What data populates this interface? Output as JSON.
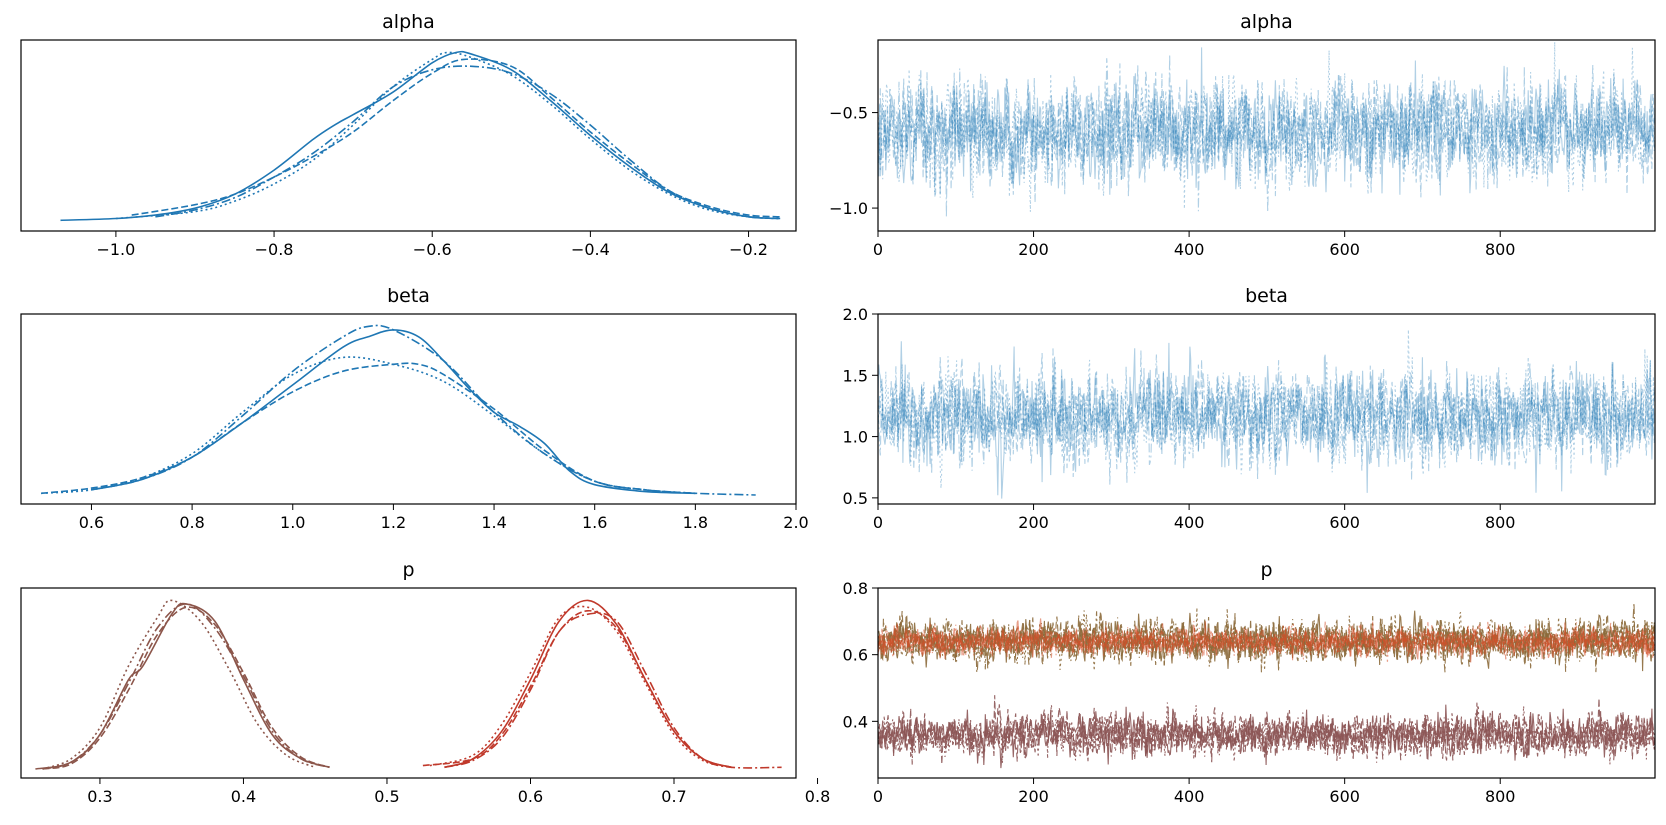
{
  "chart_data": [
    {
      "type": "line",
      "kind": "density",
      "title": "alpha",
      "xlim": [
        -1.12,
        -0.14
      ],
      "xticks": [
        -1.0,
        -0.8,
        -0.6,
        -0.4,
        -0.2
      ],
      "xtick_labels": [
        "−1.0",
        "−0.8",
        "−0.6",
        "−0.4",
        "−0.2"
      ],
      "yticks": [],
      "line_color": "#1f77b4",
      "series": [
        {
          "style": "solid",
          "x": [
            -1.07,
            -1.0,
            -0.95,
            -0.9,
            -0.85,
            -0.8,
            -0.75,
            -0.72,
            -0.7,
            -0.65,
            -0.6,
            -0.57,
            -0.55,
            -0.5,
            -0.45,
            -0.4,
            -0.35,
            -0.3,
            -0.25,
            -0.2,
            -0.16
          ],
          "y": [
            0.01,
            0.02,
            0.04,
            0.08,
            0.16,
            0.3,
            0.48,
            0.57,
            0.62,
            0.75,
            0.92,
            0.98,
            0.97,
            0.88,
            0.7,
            0.5,
            0.32,
            0.17,
            0.08,
            0.03,
            0.02
          ]
        },
        {
          "style": "dotted",
          "x": [
            -1.0,
            -0.9,
            -0.85,
            -0.8,
            -0.75,
            -0.7,
            -0.65,
            -0.6,
            -0.58,
            -0.55,
            -0.5,
            -0.45,
            -0.4,
            -0.35,
            -0.3,
            -0.25,
            -0.2,
            -0.16
          ],
          "y": [
            0.02,
            0.06,
            0.12,
            0.22,
            0.36,
            0.56,
            0.78,
            0.94,
            0.98,
            0.95,
            0.85,
            0.68,
            0.48,
            0.3,
            0.16,
            0.07,
            0.03,
            0.02
          ]
        },
        {
          "style": "dashed",
          "x": [
            -0.98,
            -0.9,
            -0.85,
            -0.8,
            -0.75,
            -0.7,
            -0.65,
            -0.6,
            -0.56,
            -0.5,
            -0.45,
            -0.4,
            -0.35,
            -0.3,
            -0.25,
            -0.2,
            -0.16
          ],
          "y": [
            0.04,
            0.1,
            0.16,
            0.26,
            0.38,
            0.52,
            0.7,
            0.86,
            0.94,
            0.9,
            0.72,
            0.52,
            0.34,
            0.18,
            0.09,
            0.04,
            0.03
          ]
        },
        {
          "style": "dashdot",
          "x": [
            -0.95,
            -0.9,
            -0.85,
            -0.8,
            -0.75,
            -0.7,
            -0.65,
            -0.6,
            -0.55,
            -0.5,
            -0.45,
            -0.4,
            -0.35,
            -0.3,
            -0.25,
            -0.2,
            -0.16
          ],
          "y": [
            0.03,
            0.07,
            0.14,
            0.26,
            0.4,
            0.58,
            0.78,
            0.88,
            0.9,
            0.86,
            0.74,
            0.56,
            0.36,
            0.18,
            0.08,
            0.03,
            0.02
          ]
        }
      ]
    },
    {
      "type": "line",
      "kind": "trace",
      "title": "alpha",
      "xlim": [
        0,
        999
      ],
      "ylim": [
        -1.12,
        -0.12
      ],
      "xticks": [
        0,
        200,
        400,
        600,
        800
      ],
      "xtick_labels": [
        "0",
        "200",
        "400",
        "600",
        "800"
      ],
      "yticks": [
        -0.5,
        -1.0
      ],
      "ytick_labels": [
        "−0.5",
        "−1.0"
      ],
      "mean": -0.6,
      "sd": 0.13,
      "n_draws": 1000,
      "n_chains": 4,
      "line_color": "#1f77b4",
      "opacity": 0.35
    },
    {
      "type": "line",
      "kind": "density",
      "title": "beta",
      "xlim": [
        0.46,
        2.0
      ],
      "xticks": [
        0.6,
        0.8,
        1.0,
        1.2,
        1.4,
        1.6,
        1.8,
        2.0
      ],
      "xtick_labels": [
        "0.6",
        "0.8",
        "1.0",
        "1.2",
        "1.4",
        "1.6",
        "1.8",
        "2.0"
      ],
      "yticks": [],
      "line_color": "#1f77b4",
      "series": [
        {
          "style": "solid",
          "x": [
            0.6,
            0.7,
            0.8,
            0.9,
            1.0,
            1.1,
            1.15,
            1.2,
            1.25,
            1.3,
            1.35,
            1.4,
            1.45,
            1.5,
            1.55,
            1.6,
            1.7,
            1.8
          ],
          "y": [
            0.03,
            0.09,
            0.22,
            0.42,
            0.64,
            0.86,
            0.92,
            0.96,
            0.92,
            0.78,
            0.62,
            0.48,
            0.4,
            0.3,
            0.14,
            0.06,
            0.02,
            0.01
          ]
        },
        {
          "style": "dotted",
          "x": [
            0.5,
            0.6,
            0.7,
            0.8,
            0.9,
            1.0,
            1.1,
            1.2,
            1.3,
            1.4,
            1.5,
            1.6,
            1.7,
            1.8
          ],
          "y": [
            0.01,
            0.03,
            0.1,
            0.24,
            0.48,
            0.7,
            0.8,
            0.76,
            0.66,
            0.46,
            0.24,
            0.08,
            0.03,
            0.01
          ]
        },
        {
          "style": "dashed",
          "x": [
            0.5,
            0.6,
            0.7,
            0.8,
            0.9,
            1.0,
            1.1,
            1.2,
            1.25,
            1.3,
            1.4,
            1.5,
            1.6,
            1.7,
            1.8
          ],
          "y": [
            0.01,
            0.04,
            0.1,
            0.22,
            0.42,
            0.6,
            0.72,
            0.76,
            0.76,
            0.7,
            0.5,
            0.26,
            0.08,
            0.03,
            0.01
          ]
        },
        {
          "style": "dashdot",
          "x": [
            0.6,
            0.7,
            0.8,
            0.9,
            1.0,
            1.1,
            1.15,
            1.2,
            1.3,
            1.4,
            1.5,
            1.6,
            1.7,
            1.8,
            1.92
          ],
          "y": [
            0.03,
            0.09,
            0.22,
            0.46,
            0.72,
            0.92,
            0.98,
            0.96,
            0.78,
            0.48,
            0.24,
            0.08,
            0.03,
            0.01,
            0.0
          ]
        }
      ]
    },
    {
      "type": "line",
      "kind": "trace",
      "title": "beta",
      "xlim": [
        0,
        999
      ],
      "ylim": [
        0.45,
        2.0
      ],
      "xticks": [
        0,
        200,
        400,
        600,
        800
      ],
      "xtick_labels": [
        "0",
        "200",
        "400",
        "600",
        "800"
      ],
      "yticks": [
        0.5,
        1.0,
        1.5,
        2.0
      ],
      "ytick_labels": [
        "0.5",
        "1.0",
        "1.5",
        "2.0"
      ],
      "mean": 1.16,
      "sd": 0.18,
      "n_draws": 1000,
      "n_chains": 4,
      "line_color": "#1f77b4",
      "opacity": 0.35
    },
    {
      "type": "line",
      "kind": "density",
      "title": "p",
      "xlim": [
        0.245,
        0.785
      ],
      "xticks": [
        0.3,
        0.4,
        0.5,
        0.6,
        0.7,
        0.8
      ],
      "xtick_labels": [
        "0.3",
        "0.4",
        "0.5",
        "0.6",
        "0.7",
        "0.8"
      ],
      "yticks": [],
      "groups": [
        {
          "color": "#8c564b",
          "series": [
            {
              "style": "solid",
              "x": [
                0.255,
                0.28,
                0.3,
                0.32,
                0.33,
                0.35,
                0.36,
                0.38,
                0.4,
                0.42,
                0.44,
                0.46
              ],
              "y": [
                0.0,
                0.04,
                0.2,
                0.52,
                0.6,
                0.9,
                0.96,
                0.86,
                0.52,
                0.2,
                0.06,
                0.01
              ]
            },
            {
              "style": "dotted",
              "x": [
                0.26,
                0.28,
                0.3,
                0.32,
                0.34,
                0.35,
                0.37,
                0.39,
                0.41,
                0.43,
                0.45
              ],
              "y": [
                0.0,
                0.06,
                0.24,
                0.6,
                0.88,
                0.98,
                0.86,
                0.58,
                0.26,
                0.08,
                0.01
              ]
            },
            {
              "style": "dashed",
              "x": [
                0.26,
                0.28,
                0.3,
                0.32,
                0.34,
                0.36,
                0.38,
                0.4,
                0.42,
                0.44,
                0.46
              ],
              "y": [
                0.0,
                0.03,
                0.18,
                0.46,
                0.78,
                0.94,
                0.84,
                0.56,
                0.24,
                0.07,
                0.01
              ]
            },
            {
              "style": "dashdot",
              "x": [
                0.26,
                0.28,
                0.3,
                0.32,
                0.34,
                0.36,
                0.38,
                0.4,
                0.42,
                0.44,
                0.46
              ],
              "y": [
                0.0,
                0.04,
                0.2,
                0.5,
                0.82,
                0.96,
                0.82,
                0.54,
                0.22,
                0.06,
                0.01
              ]
            }
          ]
        },
        {
          "color": "#c0392b",
          "series": [
            {
              "style": "solid",
              "x": [
                0.54,
                0.56,
                0.58,
                0.6,
                0.62,
                0.64,
                0.66,
                0.68,
                0.7,
                0.72,
                0.74
              ],
              "y": [
                0.01,
                0.06,
                0.22,
                0.52,
                0.86,
                0.98,
                0.84,
                0.52,
                0.22,
                0.06,
                0.01
              ]
            },
            {
              "style": "dotted",
              "x": [
                0.53,
                0.56,
                0.58,
                0.6,
                0.62,
                0.64,
                0.66,
                0.68,
                0.7,
                0.72,
                0.74
              ],
              "y": [
                0.02,
                0.08,
                0.26,
                0.56,
                0.88,
                0.94,
                0.8,
                0.5,
                0.2,
                0.05,
                0.01
              ]
            },
            {
              "style": "dashed",
              "x": [
                0.525,
                0.56,
                0.58,
                0.6,
                0.62,
                0.64,
                0.66,
                0.68,
                0.7,
                0.72,
                0.74
              ],
              "y": [
                0.02,
                0.06,
                0.2,
                0.48,
                0.8,
                0.92,
                0.82,
                0.52,
                0.22,
                0.06,
                0.01
              ]
            },
            {
              "style": "dashdot",
              "x": [
                0.54,
                0.56,
                0.58,
                0.6,
                0.62,
                0.64,
                0.66,
                0.68,
                0.7,
                0.72,
                0.74,
                0.775
              ],
              "y": [
                0.01,
                0.05,
                0.18,
                0.46,
                0.8,
                0.9,
                0.86,
                0.56,
                0.24,
                0.06,
                0.01,
                0.01
              ]
            }
          ]
        }
      ]
    },
    {
      "type": "line",
      "kind": "trace",
      "title": "p",
      "xlim": [
        0,
        999
      ],
      "ylim": [
        0.23,
        0.8
      ],
      "xticks": [
        0,
        200,
        400,
        600,
        800
      ],
      "xtick_labels": [
        "0",
        "200",
        "400",
        "600",
        "800"
      ],
      "yticks": [
        0.4,
        0.6,
        0.8
      ],
      "ytick_labels": [
        "0.4",
        "0.6",
        "0.8"
      ],
      "n_draws": 1000,
      "n_chains": 4,
      "groups": [
        {
          "mean": 0.64,
          "sd": 0.03,
          "color": "#8c6a3b",
          "opacity": 0.9
        },
        {
          "mean": 0.64,
          "sd": 0.02,
          "color": "#d4502a",
          "opacity": 0.55
        },
        {
          "mean": 0.36,
          "sd": 0.03,
          "color": "#8c5555",
          "opacity": 0.9
        }
      ]
    }
  ]
}
